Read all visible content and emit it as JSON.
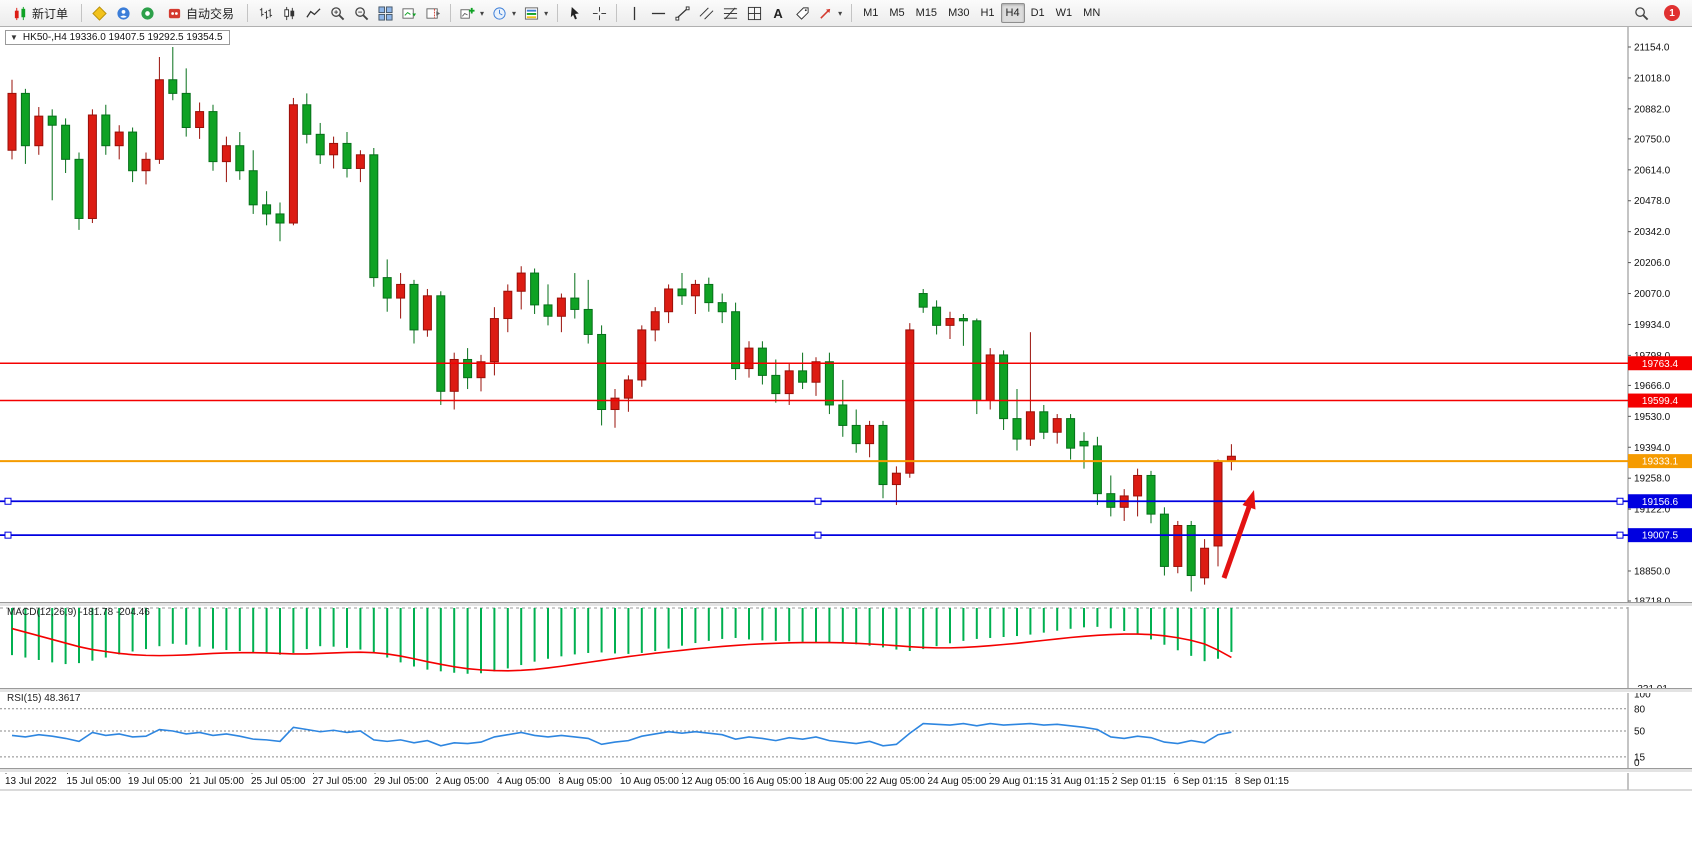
{
  "toolbar": {
    "new_order_label": "新订单",
    "auto_trading_label": "自动交易",
    "text_tool_label": "A",
    "timeframes": [
      "M1",
      "M5",
      "M15",
      "M30",
      "H1",
      "H4",
      "D1",
      "W1",
      "MN"
    ],
    "active_timeframe": "H4",
    "notification_count": "1",
    "icons": [
      "new-order-icon",
      "metaeditor-icon",
      "community-icon",
      "market-icon",
      "auto-trading-icon",
      "bar-chart-icon",
      "candlestick-chart-icon",
      "line-chart-icon",
      "zoom-in-icon",
      "zoom-out-icon",
      "tile-windows-icon",
      "auto-scroll-icon",
      "chart-shift-icon",
      "new-chart-icon",
      "periods-icon",
      "templates-icon",
      "cursor-icon",
      "crosshair-icon",
      "vertical-line-icon",
      "horizontal-line-icon",
      "trendline-icon",
      "channel-icon",
      "fibonacci-icon",
      "shapes-icon",
      "text-icon",
      "label-icon",
      "arrows-icon",
      "search-icon",
      "notification-badge"
    ]
  },
  "chart": {
    "symbol_info": "HK50-,H4 19336.0 19407.5 19292.5 19354.5",
    "arrow_color": "#e31212",
    "price_axis": [
      "21154.0",
      "21018.0",
      "20882.0",
      "20750.0",
      "20614.0",
      "20478.0",
      "20342.0",
      "20206.0",
      "20070.0",
      "19934.0",
      "19798.0",
      "19666.0",
      "19530.0",
      "19394.0",
      "19258.0",
      "19122.0",
      "18850.0",
      "18718.0"
    ],
    "hlines": [
      {
        "price": 19763.4,
        "label": "19763.4",
        "color": "#f40000",
        "width": 1.5,
        "handles": false
      },
      {
        "price": 19599.4,
        "label": "19599.4",
        "color": "#f40000",
        "width": 1.5,
        "handles": false
      },
      {
        "price": 19333.1,
        "label": "19333.1",
        "color": "#f59b00",
        "width": 2,
        "handles": false
      },
      {
        "price": 19156.6,
        "label": "19156.6",
        "color": "#0000e0",
        "width": 1.8,
        "handles": true
      },
      {
        "price": 19007.5,
        "label": "19007.5",
        "color": "#0000e0",
        "width": 1.8,
        "handles": true
      }
    ],
    "dates": [
      "13 Jul 2022",
      "15 Jul 05:00",
      "19 Jul 05:00",
      "21 Jul 05:00",
      "25 Jul 05:00",
      "27 Jul 05:00",
      "29 Jul 05:00",
      "2 Aug 05:00",
      "4 Aug 05:00",
      "8 Aug 05:00",
      "10 Aug 05:00",
      "12 Aug 05:00",
      "16 Aug 05:00",
      "18 Aug 05:00",
      "22 Aug 05:00",
      "24 Aug 05:00",
      "29 Aug 01:15",
      "31 Aug 01:15",
      "2 Sep 01:15",
      "6 Sep 01:15",
      "8 Sep 01:15"
    ]
  },
  "macd": {
    "label": "MACD(12,26,9) -181.78 -204.46",
    "min_label": "-331.01"
  },
  "rsi": {
    "label": "RSI(15) 48.3617",
    "levels": [
      "100",
      "80",
      "50",
      "15",
      "0"
    ]
  },
  "chart_data": {
    "type": "candlestick",
    "symbol": "HK50-",
    "timeframe": "H4",
    "ohlc_current": {
      "open": 19336.0,
      "high": 19407.5,
      "low": 19292.5,
      "close": 19354.5
    },
    "price_range": [
      18718.0,
      21154.0
    ],
    "colors": {
      "up": "#dc1c13",
      "up_border": "#991009",
      "down": "#0fa224",
      "down_border": "#06701a",
      "macd_bar": "#00b050",
      "macd_signal": "#f40000",
      "rsi": "#2e86e0"
    },
    "candles": [
      [
        20700,
        21010,
        20660,
        20950
      ],
      [
        20950,
        20970,
        20640,
        20720
      ],
      [
        20720,
        20890,
        20680,
        20850
      ],
      [
        20850,
        20880,
        20480,
        20810
      ],
      [
        20810,
        20840,
        20600,
        20660
      ],
      [
        20660,
        20690,
        20350,
        20400
      ],
      [
        20400,
        20880,
        20380,
        20855
      ],
      [
        20855,
        20900,
        20680,
        20720
      ],
      [
        20720,
        20810,
        20660,
        20780
      ],
      [
        20780,
        20800,
        20560,
        20610
      ],
      [
        20610,
        20690,
        20550,
        20660
      ],
      [
        20660,
        21110,
        20640,
        21010
      ],
      [
        21010,
        21154,
        20920,
        20950
      ],
      [
        20950,
        21060,
        20760,
        20800
      ],
      [
        20800,
        20910,
        20750,
        20870
      ],
      [
        20870,
        20900,
        20610,
        20650
      ],
      [
        20650,
        20760,
        20560,
        20720
      ],
      [
        20720,
        20780,
        20570,
        20610
      ],
      [
        20610,
        20700,
        20420,
        20460
      ],
      [
        20460,
        20520,
        20370,
        20420
      ],
      [
        20420,
        20470,
        20300,
        20380
      ],
      [
        20380,
        20930,
        20370,
        20900
      ],
      [
        20900,
        20950,
        20730,
        20770
      ],
      [
        20770,
        20820,
        20640,
        20680
      ],
      [
        20680,
        20760,
        20620,
        20730
      ],
      [
        20730,
        20780,
        20580,
        20620
      ],
      [
        20620,
        20700,
        20560,
        20680
      ],
      [
        20680,
        20710,
        20100,
        20140
      ],
      [
        20140,
        20220,
        19990,
        20050
      ],
      [
        20050,
        20160,
        19960,
        20110
      ],
      [
        20110,
        20130,
        19850,
        19910
      ],
      [
        19910,
        20090,
        19880,
        20060
      ],
      [
        20060,
        20080,
        19580,
        19640
      ],
      [
        19640,
        19810,
        19560,
        19780
      ],
      [
        19780,
        19830,
        19650,
        19700
      ],
      [
        19700,
        19800,
        19640,
        19770
      ],
      [
        19770,
        20010,
        19710,
        19960
      ],
      [
        19960,
        20110,
        19900,
        20080
      ],
      [
        20080,
        20190,
        20000,
        20160
      ],
      [
        20160,
        20180,
        19980,
        20020
      ],
      [
        20020,
        20110,
        19930,
        19970
      ],
      [
        19970,
        20070,
        19900,
        20050
      ],
      [
        20050,
        20160,
        19960,
        20000
      ],
      [
        20000,
        20130,
        19850,
        19890
      ],
      [
        19890,
        19930,
        19490,
        19560
      ],
      [
        19560,
        19650,
        19480,
        19610
      ],
      [
        19610,
        19710,
        19550,
        19690
      ],
      [
        19690,
        19930,
        19660,
        19910
      ],
      [
        19910,
        20010,
        19860,
        19990
      ],
      [
        19990,
        20110,
        19940,
        20090
      ],
      [
        20090,
        20160,
        20020,
        20060
      ],
      [
        20060,
        20130,
        19980,
        20110
      ],
      [
        20110,
        20140,
        19990,
        20030
      ],
      [
        20030,
        20070,
        19940,
        19990
      ],
      [
        19990,
        20030,
        19690,
        19740
      ],
      [
        19740,
        19860,
        19700,
        19830
      ],
      [
        19830,
        19860,
        19670,
        19710
      ],
      [
        19710,
        19780,
        19590,
        19630
      ],
      [
        19630,
        19760,
        19580,
        19730
      ],
      [
        19730,
        19810,
        19650,
        19680
      ],
      [
        19680,
        19790,
        19620,
        19770
      ],
      [
        19770,
        19810,
        19540,
        19580
      ],
      [
        19580,
        19690,
        19440,
        19490
      ],
      [
        19490,
        19560,
        19370,
        19410
      ],
      [
        19410,
        19510,
        19350,
        19490
      ],
      [
        19490,
        19510,
        19170,
        19230
      ],
      [
        19230,
        19310,
        19140,
        19280
      ],
      [
        19280,
        19940,
        19260,
        19910
      ],
      [
        20070,
        20090,
        19985,
        20010
      ],
      [
        20010,
        20040,
        19890,
        19930
      ],
      [
        19930,
        19990,
        19870,
        19960
      ],
      [
        19960,
        19980,
        19840,
        19950
      ],
      [
        19950,
        19960,
        19540,
        19600
      ],
      [
        19600,
        19830,
        19560,
        19800
      ],
      [
        19800,
        19820,
        19470,
        19520
      ],
      [
        19520,
        19650,
        19380,
        19430
      ],
      [
        19430,
        19900,
        19400,
        19550
      ],
      [
        19550,
        19580,
        19430,
        19460
      ],
      [
        19460,
        19540,
        19410,
        19520
      ],
      [
        19520,
        19540,
        19340,
        19390
      ],
      [
        19420,
        19460,
        19300,
        19400
      ],
      [
        19400,
        19440,
        19140,
        19190
      ],
      [
        19190,
        19270,
        19090,
        19130
      ],
      [
        19130,
        19210,
        19070,
        19180
      ],
      [
        19180,
        19300,
        19090,
        19270
      ],
      [
        19270,
        19290,
        19060,
        19100
      ],
      [
        19100,
        19130,
        18830,
        18870
      ],
      [
        18870,
        19070,
        18840,
        19050
      ],
      [
        19050,
        19070,
        18760,
        18830
      ],
      [
        18820,
        18990,
        18790,
        18950
      ],
      [
        18960,
        19340,
        18870,
        19328
      ],
      [
        19336,
        19407.5,
        19292.5,
        19354.5
      ]
    ],
    "macd_histogram": [
      -195,
      -205,
      -215,
      -225,
      -232,
      -228,
      -218,
      -205,
      -192,
      -180,
      -170,
      -158,
      -148,
      -152,
      -160,
      -168,
      -174,
      -178,
      -183,
      -188,
      -193,
      -186,
      -170,
      -158,
      -160,
      -165,
      -172,
      -182,
      -205,
      -225,
      -242,
      -255,
      -262,
      -268,
      -272,
      -270,
      -262,
      -250,
      -236,
      -222,
      -210,
      -200,
      -192,
      -186,
      -184,
      -188,
      -190,
      -186,
      -178,
      -168,
      -156,
      -145,
      -136,
      -128,
      -124,
      -130,
      -134,
      -136,
      -138,
      -140,
      -141,
      -142,
      -145,
      -150,
      -156,
      -163,
      -172,
      -178,
      -170,
      -158,
      -146,
      -136,
      -128,
      -124,
      -120,
      -116,
      -110,
      -102,
      -94,
      -86,
      -80,
      -78,
      -84,
      -95,
      -110,
      -130,
      -152,
      -175,
      -198,
      -220,
      -210,
      -181.78
    ],
    "macd_signal": [
      -85,
      -100,
      -115,
      -130,
      -145,
      -160,
      -172,
      -180,
      -188,
      -193,
      -196,
      -197,
      -196,
      -194,
      -191,
      -188,
      -186,
      -185,
      -185,
      -186,
      -188,
      -190,
      -190,
      -188,
      -186,
      -184,
      -183,
      -185,
      -190,
      -199,
      -210,
      -222,
      -233,
      -243,
      -251,
      -256,
      -259,
      -260,
      -258,
      -254,
      -248,
      -241,
      -233,
      -225,
      -217,
      -209,
      -201,
      -194,
      -187,
      -181,
      -175,
      -169,
      -164,
      -159,
      -155,
      -151,
      -148,
      -146,
      -144,
      -143,
      -143,
      -143,
      -144,
      -146,
      -149,
      -152,
      -156,
      -160,
      -163,
      -165,
      -165,
      -163,
      -160,
      -156,
      -151,
      -146,
      -140,
      -134,
      -128,
      -122,
      -117,
      -113,
      -110,
      -108,
      -108,
      -110,
      -115,
      -123,
      -134,
      -149,
      -174,
      -204.46
    ],
    "rsi": [
      44,
      42,
      45,
      43,
      40,
      36,
      48,
      44,
      46,
      42,
      43,
      52,
      50,
      46,
      48,
      44,
      46,
      43,
      39,
      38,
      36,
      55,
      52,
      49,
      51,
      48,
      50,
      38,
      36,
      38,
      34,
      37,
      30,
      34,
      33,
      35,
      42,
      45,
      48,
      44,
      42,
      44,
      42,
      40,
      32,
      35,
      37,
      43,
      46,
      49,
      47,
      49,
      47,
      45,
      39,
      42,
      40,
      37,
      41,
      39,
      42,
      37,
      35,
      33,
      36,
      30,
      32,
      47,
      60,
      59,
      58,
      60,
      57,
      60,
      58,
      59,
      60,
      58,
      59,
      57,
      55,
      52,
      42,
      40,
      43,
      41,
      35,
      33,
      37,
      34,
      45,
      48.36
    ]
  }
}
